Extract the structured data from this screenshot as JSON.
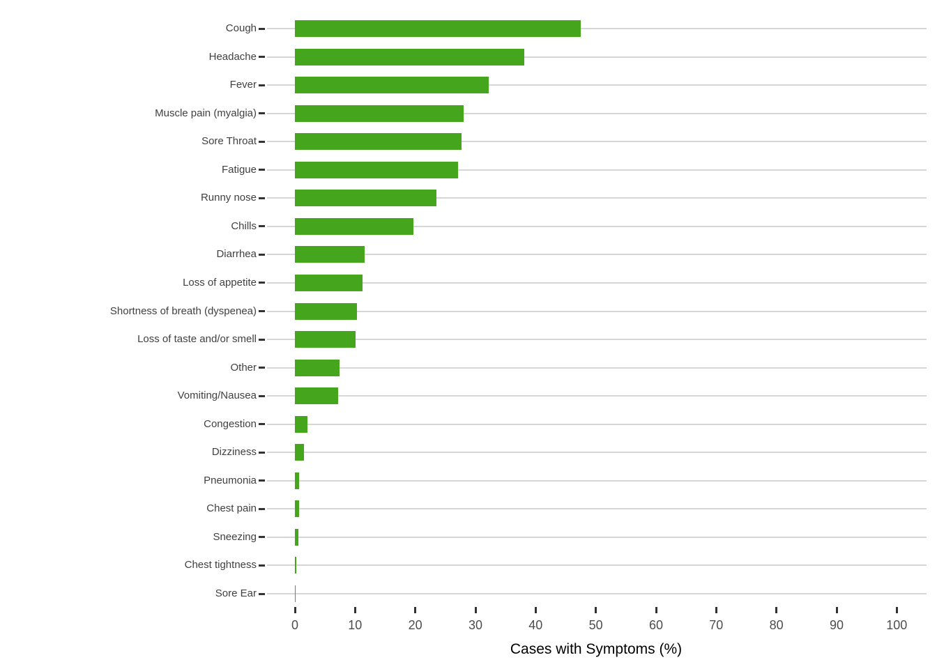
{
  "chart_data": {
    "type": "bar",
    "orientation": "horizontal",
    "title": "",
    "xlabel": "Cases with Symptoms (%)",
    "ylabel": "",
    "xlim": [
      0,
      105
    ],
    "x_ticks": [
      0,
      10,
      20,
      30,
      40,
      50,
      60,
      70,
      80,
      90,
      100
    ],
    "grid": "horizontal-major-only",
    "legend": "none",
    "categories": [
      "Cough",
      "Headache",
      "Fever",
      "Muscle pain (myalgia)",
      "Sore Throat",
      "Fatigue",
      "Runny nose",
      "Chills",
      "Diarrhea",
      "Loss of appetite",
      "Shortness of breath (dyspenea)",
      "Loss of taste and/or smell",
      "Other",
      "Vomiting/Nausea",
      "Congestion",
      "Dizziness",
      "Pneumonia",
      "Chest pain",
      "Sneezing",
      "Chest tightness",
      "Sore Ear"
    ],
    "values": [
      47.5,
      38.1,
      32.2,
      28.0,
      27.7,
      27.1,
      23.5,
      19.7,
      11.6,
      11.2,
      10.3,
      10.1,
      7.4,
      7.2,
      2.1,
      1.5,
      0.7,
      0.65,
      0.6,
      0.2,
      0.15
    ],
    "colors": {
      "bar": "#45a51c",
      "gridline": "#d6d6d6",
      "tick_mark": "#333333",
      "category_label_text": "#404040",
      "x_tick_label_text": "#4d4d4d",
      "axis_title_text": "#000000",
      "background": "#ffffff"
    }
  }
}
